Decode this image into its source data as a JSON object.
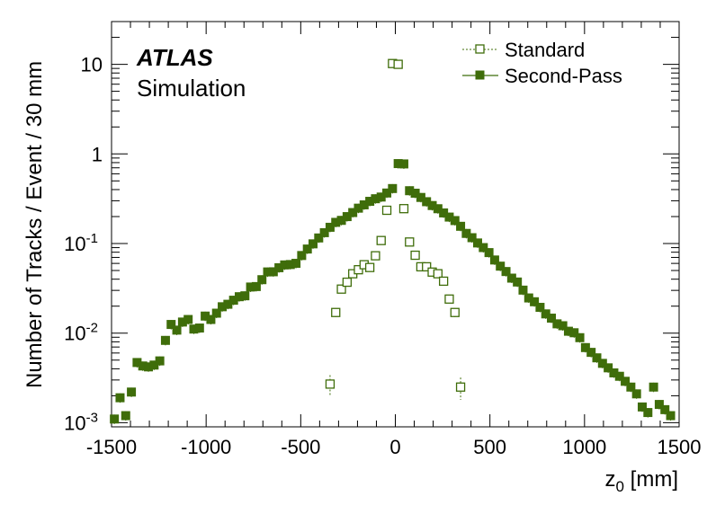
{
  "chart_data": {
    "type": "scatter",
    "title": "",
    "xlabel": "z_0 [mm]",
    "xlabel_main": "z",
    "xlabel_sub": "0",
    "xlabel_unit": " [mm]",
    "ylabel": "Number of Tracks / Event / 30 mm",
    "xlim": [
      -1500,
      1500
    ],
    "ylim": [
      0.0009,
      30
    ],
    "yscale": "log",
    "x_ticks": [
      -1500,
      -1000,
      -500,
      0,
      500,
      1000,
      1500
    ],
    "x_tick_labels": [
      "-1500",
      "-1000",
      "-500",
      "0",
      "500",
      "1000",
      "1500"
    ],
    "y_ticks": [
      {
        "value": 0.001,
        "base": "10",
        "exp": "-3"
      },
      {
        "value": 0.01,
        "base": "10",
        "exp": "-2"
      },
      {
        "value": 0.1,
        "base": "10",
        "exp": "-1"
      },
      {
        "value": 1,
        "base": "1",
        "exp": ""
      },
      {
        "value": 10,
        "base": "10",
        "exp": ""
      }
    ],
    "atlas_label": "ATLAS",
    "atlas_sublabel": "Simulation",
    "legend_position": "top-right",
    "series": [
      {
        "name": "Standard",
        "marker": "open-square",
        "line": "dotted",
        "color": "#3f6d0a",
        "x": [
          -345,
          -315,
          -285,
          -255,
          -225,
          -195,
          -165,
          -135,
          -105,
          -75,
          -45,
          -15,
          15,
          45,
          75,
          105,
          135,
          165,
          195,
          225,
          255,
          285,
          315,
          345
        ],
        "y": [
          0.0027,
          0.017,
          0.031,
          0.037,
          0.046,
          0.051,
          0.058,
          0.054,
          0.073,
          0.108,
          0.235,
          10.2,
          10.0,
          0.245,
          0.104,
          0.074,
          0.055,
          0.055,
          0.048,
          0.046,
          0.038,
          0.024,
          0.017,
          0.0025
        ],
        "err": [
          0.0007,
          0.002,
          0.002,
          0.002,
          0.003,
          0.003,
          0.003,
          0.003,
          0.004,
          0.005,
          0.01,
          0.1,
          0.1,
          0.01,
          0.005,
          0.004,
          0.003,
          0.003,
          0.003,
          0.003,
          0.002,
          0.002,
          0.002,
          0.0007
        ]
      },
      {
        "name": "Second-Pass",
        "marker": "filled-square",
        "line": "solid",
        "color": "#3f6d0a",
        "x": [
          -1485,
          -1455,
          -1425,
          -1395,
          -1365,
          -1335,
          -1305,
          -1275,
          -1245,
          -1215,
          -1185,
          -1155,
          -1125,
          -1095,
          -1065,
          -1035,
          -1005,
          -975,
          -945,
          -915,
          -885,
          -855,
          -825,
          -795,
          -765,
          -735,
          -705,
          -675,
          -645,
          -615,
          -585,
          -555,
          -525,
          -495,
          -465,
          -435,
          -405,
          -375,
          -345,
          -315,
          -285,
          -255,
          -225,
          -195,
          -165,
          -135,
          -105,
          -75,
          -45,
          -15,
          15,
          45,
          75,
          105,
          135,
          165,
          195,
          225,
          255,
          285,
          315,
          345,
          375,
          405,
          435,
          465,
          495,
          525,
          555,
          585,
          615,
          645,
          675,
          705,
          735,
          765,
          795,
          825,
          855,
          885,
          915,
          945,
          975,
          1005,
          1035,
          1065,
          1095,
          1125,
          1155,
          1185,
          1215,
          1245,
          1275,
          1305,
          1335,
          1365,
          1395,
          1425,
          1455,
          1485
        ],
        "y": [
          0.0011,
          0.0019,
          0.0012,
          0.0022,
          0.0047,
          0.0043,
          0.0042,
          0.0044,
          0.0049,
          0.0083,
          0.0125,
          0.0108,
          0.0133,
          0.0142,
          0.0111,
          0.0114,
          0.0155,
          0.0142,
          0.0167,
          0.0197,
          0.021,
          0.0233,
          0.0255,
          0.0261,
          0.0327,
          0.0331,
          0.0395,
          0.0482,
          0.0484,
          0.0537,
          0.0577,
          0.0583,
          0.0601,
          0.0735,
          0.0868,
          0.0992,
          0.1154,
          0.1322,
          0.1518,
          0.1723,
          0.1813,
          0.1997,
          0.2217,
          0.2481,
          0.2702,
          0.2958,
          0.3161,
          0.3301,
          0.3662,
          0.4108,
          0.78,
          0.7734,
          0.3886,
          0.3645,
          0.3269,
          0.2931,
          0.2655,
          0.2446,
          0.2196,
          0.1973,
          0.1804,
          0.1557,
          0.1297,
          0.1162,
          0.1015,
          0.0901,
          0.0792,
          0.0655,
          0.0559,
          0.0487,
          0.0411,
          0.0372,
          0.0302,
          0.0247,
          0.0224,
          0.0194,
          0.0164,
          0.0147,
          0.0127,
          0.0121,
          0.0105,
          0.0101,
          0.0089,
          0.0069,
          0.0061,
          0.0053,
          0.0046,
          0.0041,
          0.0036,
          0.0033,
          0.0029,
          0.0025,
          0.0021,
          0.0015,
          0.0013,
          0.0025,
          0.0016,
          0.0014,
          0.0012,
          0.0008
        ],
        "err_rel": 0.12
      }
    ]
  }
}
